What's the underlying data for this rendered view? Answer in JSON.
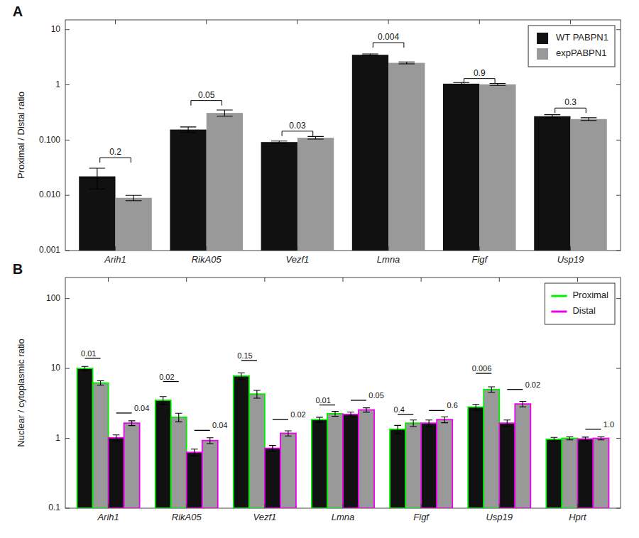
{
  "chart_data": [
    {
      "type": "bar",
      "title": "A",
      "categories": [
        "Arih1",
        "RikA05",
        "Vezf1",
        "Lmna",
        "Figf",
        "Usp19"
      ],
      "series": [
        {
          "name": "WT PABPN1",
          "color": "#111111",
          "values": [
            0.022,
            0.155,
            0.092,
            3.5,
            1.05,
            0.27
          ],
          "errors": [
            0.009,
            0.018,
            0.004,
            0.12,
            0.05,
            0.018
          ]
        },
        {
          "name": "expPABPN1",
          "color": "#999999",
          "values": [
            0.009,
            0.31,
            0.11,
            2.5,
            1.02,
            0.24
          ],
          "errors": [
            0.001,
            0.04,
            0.006,
            0.1,
            0.04,
            0.014
          ]
        }
      ],
      "ylabel": "Proximal / Distal ratio",
      "ylim": [
        0.001,
        15
      ],
      "yticks": [
        0.001,
        {
          "value": 0.01,
          "label": "0.010"
        },
        {
          "value": 0.1,
          "label": "0.100"
        },
        1,
        10
      ],
      "log": "y",
      "legend": "upper right",
      "annotations": [
        {
          "text": "0.2",
          "category": "Arih1",
          "y": 0.048
        },
        {
          "text": "0.05",
          "category": "RikA05",
          "y": 0.52
        },
        {
          "text": "0.03",
          "category": "Vezf1",
          "y": 0.145
        },
        {
          "text": "0.004",
          "category": "Lmna",
          "y": 5.8
        },
        {
          "text": "0.9",
          "category": "Figf",
          "y": 1.3
        },
        {
          "text": "0.3",
          "category": "Usp19",
          "y": 0.38
        }
      ]
    },
    {
      "type": "bar",
      "title": "B",
      "categories": [
        "Arih1",
        "RikA05",
        "Vezf1",
        "Lmna",
        "Figf",
        "Usp19",
        "Hprt"
      ],
      "groups": [
        {
          "name": "Proximal",
          "color": "#00ee00"
        },
        {
          "name": "Distal",
          "color": "#ee00ee"
        }
      ],
      "series": [
        {
          "group": "Proximal",
          "color": "#111111",
          "values": [
            10.0,
            3.5,
            7.8,
            1.85,
            1.35,
            2.8,
            0.97
          ],
          "errors": [
            0.7,
            0.45,
            0.85,
            0.15,
            0.18,
            0.28,
            0.06
          ]
        },
        {
          "group": "Proximal",
          "color": "#999999",
          "values": [
            6.2,
            2.0,
            4.3,
            2.25,
            1.65,
            5.0,
            1.0
          ],
          "errors": [
            0.45,
            0.28,
            0.55,
            0.18,
            0.18,
            0.45,
            0.05
          ]
        },
        {
          "group": "Distal",
          "color": "#111111",
          "values": [
            1.02,
            0.63,
            0.72,
            2.2,
            1.65,
            1.65,
            0.98
          ],
          "errors": [
            0.1,
            0.07,
            0.07,
            0.18,
            0.18,
            0.18,
            0.06
          ]
        },
        {
          "group": "Distal",
          "color": "#999999",
          "values": [
            1.65,
            0.93,
            1.18,
            2.55,
            1.85,
            3.1,
            1.0
          ],
          "errors": [
            0.13,
            0.09,
            0.1,
            0.18,
            0.18,
            0.28,
            0.05
          ]
        }
      ],
      "ylabel": "Nuclear / cytoplasmic ratio",
      "ylim": [
        0.1,
        200
      ],
      "yticks": [
        0.1,
        1,
        10,
        100
      ],
      "log": "y",
      "legend": "upper right",
      "annotations": [
        {
          "text": "0.01",
          "category": "Arih1",
          "group": "Proximal",
          "y": 14.0
        },
        {
          "text": "0.02",
          "category": "RikA05",
          "group": "Proximal",
          "y": 6.5
        },
        {
          "text": "0.15",
          "category": "Vezf1",
          "group": "Proximal",
          "y": 13.0
        },
        {
          "text": "0.01",
          "category": "Lmna",
          "group": "Proximal",
          "y": 3.0
        },
        {
          "text": "0.4",
          "category": "Figf",
          "group": "Proximal",
          "y": 2.2
        },
        {
          "text": "0.006",
          "category": "Usp19",
          "group": "Proximal",
          "y": 8.5
        },
        {
          "text": "0.04",
          "category": "Arih1",
          "group": "Distal",
          "y": 2.3
        },
        {
          "text": "0.04",
          "category": "RikA05",
          "group": "Distal",
          "y": 1.3
        },
        {
          "text": "0.02",
          "category": "Vezf1",
          "group": "Distal",
          "y": 1.85
        },
        {
          "text": "0.05",
          "category": "Lmna",
          "group": "Distal",
          "y": 3.5
        },
        {
          "text": "0.6",
          "category": "Figf",
          "group": "Distal",
          "y": 2.5
        },
        {
          "text": "0.02",
          "category": "Usp19",
          "group": "Distal",
          "y": 5.0
        },
        {
          "text": "1.0",
          "category": "Hprt",
          "group": "Distal",
          "y": 1.35
        }
      ]
    }
  ]
}
